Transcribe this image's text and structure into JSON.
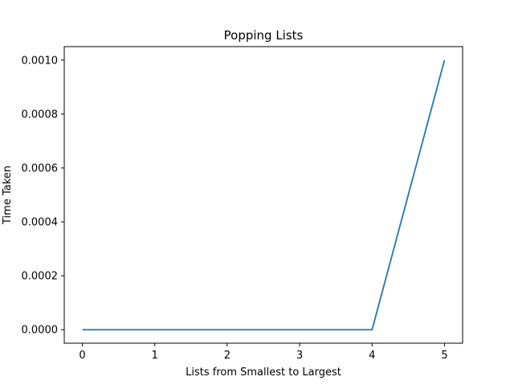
{
  "chart_data": {
    "type": "line",
    "title": "Popping Lists",
    "xlabel": "Lists from Smallest to Largest",
    "ylabel": "Time Taken",
    "x": [
      0,
      1,
      2,
      3,
      4,
      5
    ],
    "series": [
      {
        "values": [
          0.0,
          0.0,
          0.0,
          0.0,
          0.0,
          0.001
        ],
        "color": "#1f77b4"
      }
    ],
    "xlim": [
      -0.25,
      5.25
    ],
    "ylim": [
      -5e-05,
      0.00105
    ],
    "xticks": [
      0,
      1,
      2,
      3,
      4,
      5
    ],
    "xtick_labels": [
      "0",
      "1",
      "2",
      "3",
      "4",
      "5"
    ],
    "yticks": [
      0.0,
      0.0002,
      0.0004,
      0.0006,
      0.0008,
      0.001
    ],
    "ytick_labels": [
      "0.0000",
      "0.0002",
      "0.0004",
      "0.0006",
      "0.0008",
      "0.0010"
    ],
    "grid": false,
    "legend": false
  }
}
